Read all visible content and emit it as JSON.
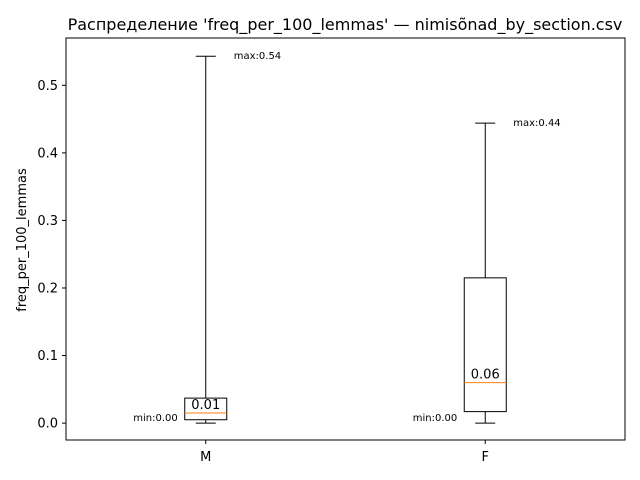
{
  "chart_data": {
    "type": "box",
    "title": "Распределение 'freq_per_100_lemmas' — nimisõnad_by_section.csv",
    "xlabel": "",
    "ylabel": "freq_per_100_lemmas",
    "ylim": [
      -0.025,
      0.57
    ],
    "yticks": [
      0.0,
      0.1,
      0.2,
      0.3,
      0.4,
      0.5
    ],
    "ytick_labels": [
      "0.0",
      "0.1",
      "0.2",
      "0.3",
      "0.4",
      "0.5"
    ],
    "grid": false,
    "categories": [
      "M",
      "F"
    ],
    "boxes": [
      {
        "category": "M",
        "min": 0.0,
        "q1": 0.005,
        "median": 0.015,
        "q3": 0.037,
        "max": 0.543,
        "median_label": "0.01",
        "min_label": "min:0.00",
        "max_label": "max:0.54"
      },
      {
        "category": "F",
        "min": 0.0,
        "q1": 0.017,
        "median": 0.06,
        "q3": 0.215,
        "max": 0.444,
        "median_label": "0.06",
        "min_label": "min:0.00",
        "max_label": "max:0.44"
      }
    ],
    "colors": {
      "box": "#000000",
      "median": "#ff7f0e",
      "whisker": "#000000"
    }
  }
}
